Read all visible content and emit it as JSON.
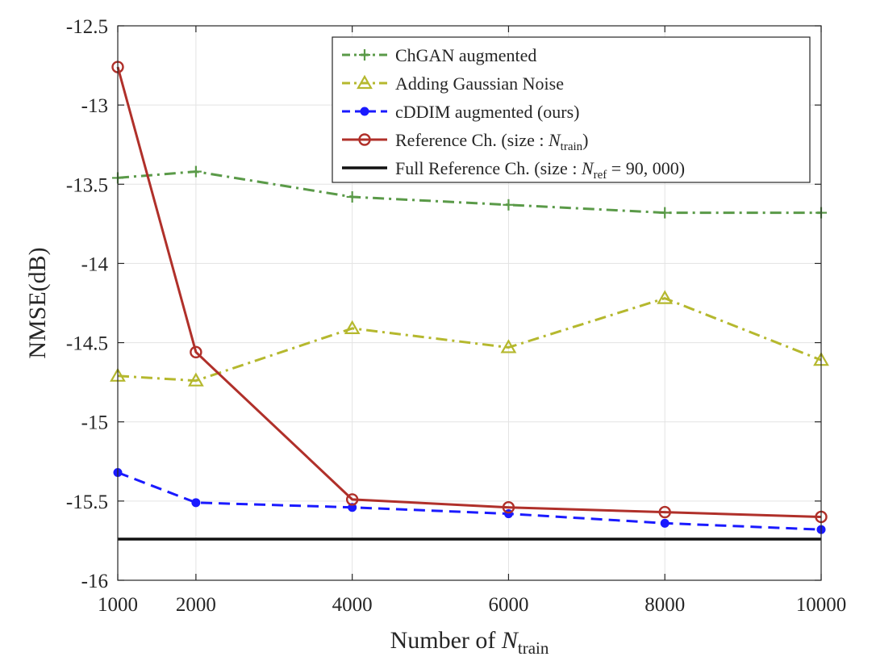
{
  "chart_data": {
    "type": "line",
    "x": [
      1000,
      2000,
      4000,
      6000,
      8000,
      10000
    ],
    "xlabel_prefix": "Number of ",
    "xlabel_var": "N",
    "xlabel_sub": "train",
    "ylabel": "NMSE(dB)",
    "xlim": [
      1000,
      10000
    ],
    "ylim": [
      -16,
      -12.5
    ],
    "xticks": [
      1000,
      2000,
      4000,
      6000,
      8000,
      10000
    ],
    "xtick_labels": [
      "1000",
      "2000",
      "4000",
      "6000",
      "8000",
      "10000"
    ],
    "yticks": [
      -12.5,
      -13,
      -13.5,
      -14,
      -14.5,
      -15,
      -15.5,
      -16
    ],
    "ytick_labels": [
      "-12.5",
      "-13",
      "-13.5",
      "-14",
      "-14.5",
      "-15",
      "-15.5",
      "-16"
    ],
    "grid": true,
    "legend_position": "top-right",
    "series": [
      {
        "name": "ChGAN augmented",
        "color": "#5a9a48",
        "line_style": "dashdot",
        "marker": "plus",
        "values": [
          -13.46,
          -13.42,
          -13.58,
          -13.63,
          -13.68,
          -13.68
        ]
      },
      {
        "name": "Adding Gaussian Noise",
        "color": "#b5b82e",
        "line_style": "dashdot",
        "marker": "triangle",
        "values": [
          -14.71,
          -14.74,
          -14.41,
          -14.53,
          -14.22,
          -14.61
        ]
      },
      {
        "name": "cDDIM augmented (ours)",
        "color": "#1a1aff",
        "line_style": "dashed",
        "marker": "dot",
        "values": [
          -15.32,
          -15.51,
          -15.54,
          -15.58,
          -15.64,
          -15.68
        ]
      },
      {
        "name": "Reference Ch. (size : N",
        "name_sub": "train",
        "name_suffix": ")",
        "color": "#b0302a",
        "line_style": "solid",
        "marker": "circle",
        "values": [
          -12.76,
          -14.56,
          -15.49,
          -15.54,
          -15.57,
          -15.6
        ]
      },
      {
        "name": "Full Reference Ch. (size : N",
        "name_sub": "ref",
        "name_suffix": " = 90, 000)",
        "color": "#111111",
        "line_style": "solid",
        "marker": "none",
        "values": [
          -15.74,
          -15.74,
          -15.74,
          -15.74,
          -15.74,
          -15.74
        ]
      }
    ]
  }
}
